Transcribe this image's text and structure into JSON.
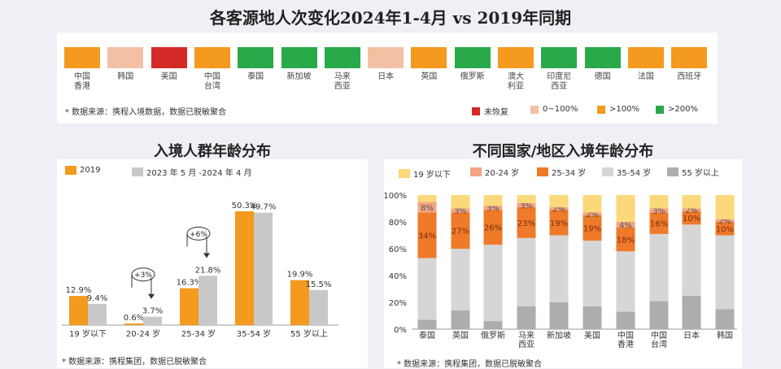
{
  "title": "各客源地人次变化2024年1-4月 vs 2019年同期",
  "countries": [
    {
      "label": "中国\n香港",
      "status": "gt100"
    },
    {
      "label": "韩国",
      "status": "0to100"
    },
    {
      "label": "美国",
      "status": "not_recovered"
    },
    {
      "label": "中国\n台湾",
      "status": "gt100"
    },
    {
      "label": "泰国",
      "status": "gt200"
    },
    {
      "label": "新加坡",
      "status": "gt200"
    },
    {
      "label": "马来\n西亚",
      "status": "gt200"
    },
    {
      "label": "日本",
      "status": "0to100"
    },
    {
      "label": "英国",
      "status": "gt100"
    },
    {
      "label": "俄罗斯",
      "status": "gt200"
    },
    {
      "label": "澳大\n利亚",
      "status": "gt100"
    },
    {
      "label": "印度尼\n西亚",
      "status": "gt200"
    },
    {
      "label": "德国",
      "status": "gt200"
    },
    {
      "label": "法国",
      "status": "gt100"
    },
    {
      "label": "西班牙",
      "status": "gt100"
    }
  ],
  "status_colors": {
    "not_recovered": "#d42a27",
    "0to100": "#f4c0a3",
    "gt100": "#f49a1e",
    "gt200": "#2aa94a"
  },
  "status_legend": [
    {
      "key": "not_recovered",
      "label": "未恢复"
    },
    {
      "key": "0to100",
      "label": "0~100%"
    },
    {
      "key": "gt100",
      "label": ">100%"
    },
    {
      "key": "gt200",
      "label": ">200%"
    }
  ],
  "top_source": "* 数据来源：携程入境数据，数据已脱敏聚合",
  "left_title": "入境人群年龄分布",
  "right_title": "不同国家/地区入境年龄分布",
  "left_source": "* 数据来源：携程集团，数据已脱敏聚合",
  "right_source": "* 数据来源：携程集团，数据已脱敏聚合",
  "chart_data": [
    {
      "type": "bar",
      "categories": [
        "19 岁以下",
        "20-24 岁",
        "25-34 岁",
        "35-54 岁",
        "55 岁以上"
      ],
      "series": [
        {
          "name": "2019",
          "values": [
            12.9,
            0.6,
            16.3,
            50.3,
            19.9
          ],
          "color": "#f49a1e"
        },
        {
          "name": "2023 年 5 月 -2024 年 4 月",
          "values": [
            9.4,
            3.7,
            21.8,
            49.7,
            15.5
          ],
          "color": "#c8c8c8"
        }
      ],
      "value_labels": [
        [
          "12.9%",
          "0.6%",
          "16.3%",
          "50.3%",
          "19.9%"
        ],
        [
          "9.4%",
          "3.7%",
          "21.8%",
          "49.7%",
          "15.5%"
        ]
      ],
      "annotations": [
        {
          "category": "20-24 岁",
          "text": "+3%"
        },
        {
          "category": "25-34 岁",
          "text": "+6%"
        }
      ],
      "ylim": [
        0,
        55
      ]
    },
    {
      "type": "bar",
      "stacked": true,
      "categories": [
        "泰国",
        "英国",
        "俄罗斯",
        "马来\n西亚",
        "新加坡",
        "美国",
        "中国\n香港",
        "中国\n台湾",
        "日本",
        "韩国"
      ],
      "y_ticks": [
        "0%",
        "20%",
        "40%",
        "60%",
        "80%",
        "100%"
      ],
      "ylim": [
        0,
        100
      ],
      "series": [
        {
          "name": "55 岁以上",
          "color": "#adadad",
          "values": [
            7,
            14,
            6,
            17,
            20,
            17,
            13,
            21,
            25,
            15
          ]
        },
        {
          "name": "35-54 岁",
          "color": "#d6d6d6",
          "values": [
            46,
            46,
            57,
            51,
            50,
            49,
            45,
            50,
            53,
            55
          ]
        },
        {
          "name": "25-34 岁",
          "color": "#ee7a2a",
          "values": [
            34,
            27,
            26,
            23,
            19,
            19,
            18,
            16,
            10,
            10
          ]
        },
        {
          "name": "20-24 岁",
          "color": "#f4a582",
          "values": [
            8,
            3,
            3,
            3,
            2,
            2,
            4,
            3,
            2,
            2
          ]
        },
        {
          "name": "19 岁以下",
          "color": "#fbd97a",
          "values": [
            5,
            10,
            8,
            6,
            9,
            13,
            20,
            10,
            10,
            18
          ]
        }
      ],
      "legend_order": [
        "19 岁以下",
        "20-24 岁",
        "25-34 岁",
        "35-54 岁",
        "55 岁以上"
      ],
      "labels": {
        "25-34 岁": [
          "34%",
          "27%",
          "26%",
          "23%",
          "19%",
          "19%",
          "18%",
          "16%",
          "10%",
          "10%"
        ],
        "20-24 岁": [
          "8%",
          "3%",
          "3%",
          "3%",
          "2%",
          "2%",
          "4%",
          "3%",
          "2%",
          "2%"
        ]
      }
    }
  ]
}
